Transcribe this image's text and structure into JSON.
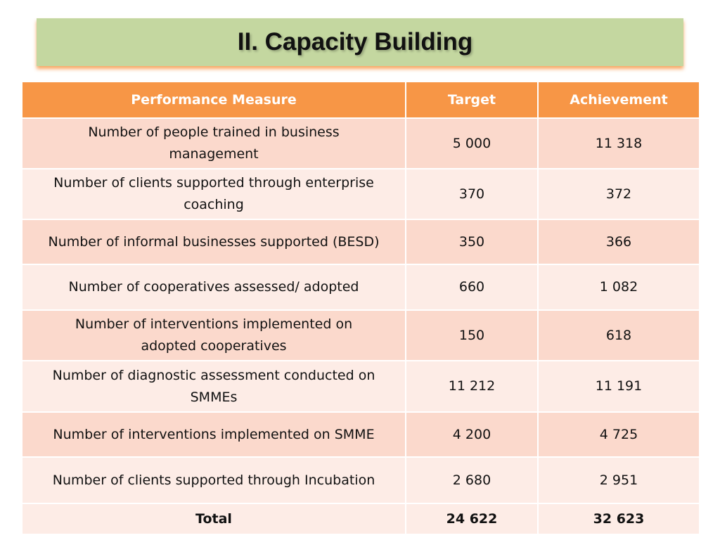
{
  "slide": {
    "title": "II. Capacity Building"
  },
  "table": {
    "headers": [
      "Performance Measure",
      "Target",
      "Achievement"
    ],
    "rows": [
      {
        "measure": "Number of people trained in business management",
        "target": "5 000",
        "achievement": "11 318"
      },
      {
        "measure": "Number of clients supported through enterprise coaching",
        "target": "370",
        "achievement": "372"
      },
      {
        "measure": "Number of informal businesses supported (BESD)",
        "target": "350",
        "achievement": "366"
      },
      {
        "measure": "Number of cooperatives assessed/ adopted",
        "target": "660",
        "achievement": "1 082"
      },
      {
        "measure": "Number of interventions implemented on adopted cooperatives",
        "target": "150",
        "achievement": "618"
      },
      {
        "measure": "Number of diagnostic assessment conducted on SMMEs",
        "target": "11 212",
        "achievement": "11 191"
      },
      {
        "measure": "Number of interventions implemented on SMME",
        "target": "4 200",
        "achievement": "4 725"
      },
      {
        "measure": "Number of clients supported through Incubation",
        "target": "2 680",
        "achievement": "2 951"
      }
    ],
    "total": {
      "label": "Total",
      "target": "24 622",
      "achievement": "32 623"
    }
  },
  "colors": {
    "banner": "#c4d7a0",
    "header": "#f79646",
    "row_dark": "#fbd9cc",
    "row_light": "#fdece6"
  }
}
